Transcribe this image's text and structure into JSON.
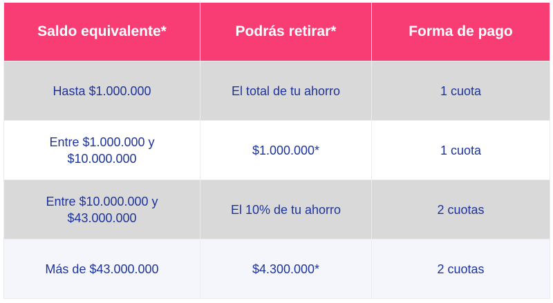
{
  "table": {
    "headers": [
      "Saldo equivalente*",
      "Podrás retirar*",
      "Forma de pago"
    ],
    "rows": [
      [
        "Hasta $1.000.000",
        "El total de tu ahorro",
        "1 cuota"
      ],
      [
        "Entre $1.000.000 y $10.000.000",
        "$1.000.000*",
        "1 cuota"
      ],
      [
        "Entre $10.000.000 y $43.000.000",
        "El 10% de tu ahorro",
        "2 cuotas"
      ],
      [
        "Más de $43.000.000",
        "$4.300.000*",
        "2 cuotas"
      ]
    ]
  },
  "colors": {
    "header": "#f83d74",
    "row_gray": "#d9d9d9",
    "text": "#1e3399"
  }
}
